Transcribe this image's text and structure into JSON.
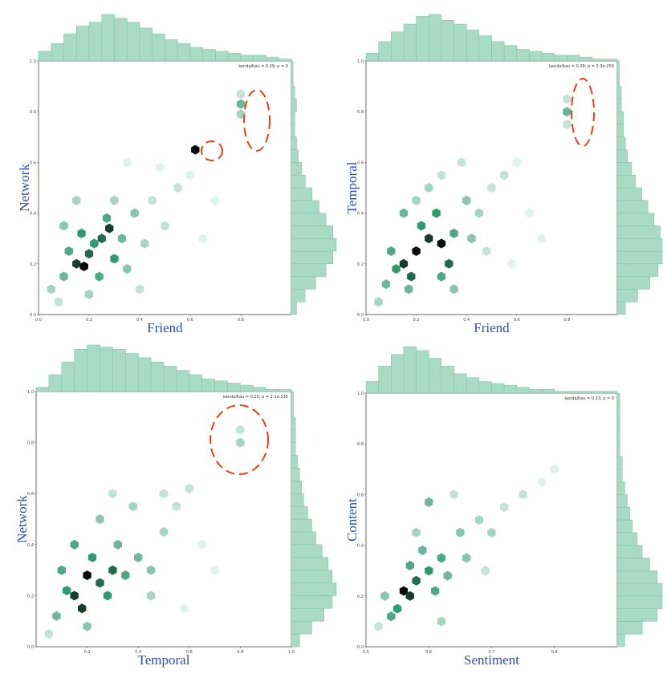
{
  "chart_data": [
    {
      "type": "hexbin",
      "x_label": "Friend",
      "y_label": "Network",
      "annotation": "kendalltau = 0.29; p = 0",
      "color": "#2f9b70",
      "hist_color": "#a9dac5",
      "xlim": [
        0,
        1.0
      ],
      "ylim": [
        0,
        1.0
      ],
      "xticks": [
        {
          "value": 0,
          "label": "0.0"
        },
        0.2,
        0.4,
        0.6,
        0.8
      ],
      "yticks": [
        {
          "value": 0,
          "label": "0.0"
        },
        0.2,
        0.4,
        0.6,
        0.8,
        {
          "value": 1,
          "label": "1.0"
        }
      ],
      "x": [
        0.15,
        0.18,
        0.2,
        0.25,
        0.28,
        0.3,
        0.22,
        0.12,
        0.17,
        0.27,
        0.33,
        0.1,
        0.24,
        0.35,
        0.38,
        0.3,
        0.1,
        0.05,
        0.2,
        0.42,
        0.45,
        0.5,
        0.15,
        0.55,
        0.6,
        0.48,
        0.62,
        0.8,
        0.8,
        0.8,
        0.7,
        0.65,
        0.35,
        0.08,
        0.4
      ],
      "y": [
        0.2,
        0.19,
        0.24,
        0.3,
        0.34,
        0.22,
        0.28,
        0.25,
        0.32,
        0.38,
        0.3,
        0.15,
        0.15,
        0.18,
        0.4,
        0.45,
        0.35,
        0.1,
        0.08,
        0.28,
        0.45,
        0.35,
        0.45,
        0.5,
        0.55,
        0.58,
        0.65,
        0.83,
        0.79,
        0.87,
        0.45,
        0.3,
        0.6,
        0.05,
        0.1
      ],
      "counts": [
        9,
        10,
        8,
        8,
        9,
        7,
        7,
        6,
        7,
        6,
        5,
        5,
        6,
        4,
        4,
        3,
        4,
        3,
        3,
        3,
        2,
        2,
        3,
        2,
        1,
        1,
        10,
        5,
        3,
        2,
        1,
        1,
        1,
        2,
        2
      ],
      "x_bins": [
        0,
        0.05,
        0.1,
        0.15,
        0.2,
        0.25,
        0.3,
        0.35,
        0.4,
        0.45,
        0.5,
        0.55,
        0.6,
        0.65,
        0.7,
        0.75,
        0.8,
        0.85,
        0.9,
        0.95,
        1.0
      ],
      "x_hist": [
        5,
        9,
        14,
        18,
        20,
        24,
        22,
        20,
        17,
        14,
        11,
        9,
        7,
        6,
        5,
        4,
        3,
        3,
        2,
        1
      ],
      "y_bins": [
        0,
        0.05,
        0.1,
        0.15,
        0.2,
        0.25,
        0.3,
        0.35,
        0.4,
        0.45,
        0.5,
        0.55,
        0.6,
        0.65,
        0.7,
        0.75,
        0.8,
        0.85,
        0.9,
        0.95,
        1.0
      ],
      "y_hist": [
        3,
        8,
        14,
        20,
        24,
        26,
        24,
        20,
        16,
        12,
        8,
        6,
        4,
        3,
        2,
        2,
        3,
        2,
        1,
        1
      ]
    },
    {
      "type": "hexbin",
      "x_label": "Friend",
      "y_label": "Temporal",
      "annotation": "kendalltau = 0.28; p = 2.3e-250",
      "color": "#2f9b70",
      "hist_color": "#a9dac5",
      "xlim": [
        0,
        1.0
      ],
      "ylim": [
        0,
        1.0
      ],
      "xticks": [
        {
          "value": 0,
          "label": "0.0"
        },
        0.2,
        0.4,
        0.6,
        0.8
      ],
      "yticks": [
        {
          "value": 0,
          "label": "0.0"
        },
        0.2,
        0.4,
        0.6,
        0.8,
        {
          "value": 1,
          "label": "1.0"
        }
      ],
      "x": [
        0.15,
        0.2,
        0.18,
        0.25,
        0.3,
        0.28,
        0.12,
        0.1,
        0.22,
        0.33,
        0.35,
        0.3,
        0.08,
        0.17,
        0.4,
        0.42,
        0.25,
        0.45,
        0.5,
        0.55,
        0.6,
        0.38,
        0.05,
        0.2,
        0.3,
        0.8,
        0.8,
        0.8,
        0.65,
        0.7,
        0.48,
        0.58,
        0.15,
        0.35
      ],
      "y": [
        0.2,
        0.25,
        0.15,
        0.3,
        0.28,
        0.4,
        0.18,
        0.25,
        0.35,
        0.2,
        0.32,
        0.15,
        0.12,
        0.1,
        0.45,
        0.3,
        0.5,
        0.4,
        0.5,
        0.55,
        0.6,
        0.6,
        0.05,
        0.45,
        0.55,
        0.8,
        0.85,
        0.75,
        0.4,
        0.3,
        0.25,
        0.2,
        0.4,
        0.1
      ],
      "counts": [
        9,
        10,
        8,
        9,
        10,
        7,
        7,
        6,
        7,
        8,
        6,
        6,
        5,
        5,
        4,
        4,
        3,
        3,
        2,
        2,
        1,
        2,
        3,
        3,
        2,
        5,
        2,
        2,
        1,
        1,
        2,
        1,
        5,
        4
      ],
      "x_bins": [
        0,
        0.05,
        0.1,
        0.15,
        0.2,
        0.25,
        0.3,
        0.35,
        0.4,
        0.45,
        0.5,
        0.55,
        0.6,
        0.65,
        0.7,
        0.75,
        0.8,
        0.85,
        0.9,
        0.95,
        1.0
      ],
      "x_hist": [
        4,
        10,
        15,
        19,
        23,
        24,
        21,
        19,
        16,
        13,
        10,
        8,
        6,
        5,
        4,
        3,
        3,
        2,
        1,
        1
      ],
      "y_bins": [
        0,
        0.05,
        0.1,
        0.15,
        0.2,
        0.25,
        0.3,
        0.35,
        0.4,
        0.45,
        0.5,
        0.55,
        0.6,
        0.65,
        0.7,
        0.75,
        0.8,
        0.85,
        0.9,
        0.95,
        1.0
      ],
      "y_hist": [
        4,
        10,
        16,
        20,
        22,
        22,
        21,
        18,
        15,
        12,
        9,
        7,
        5,
        4,
        3,
        3,
        2,
        2,
        1,
        1
      ]
    },
    {
      "type": "hexbin",
      "x_label": "Temporal",
      "y_label": "Network",
      "annotation": "kendalltau = 0.25; p = 2.1e-235",
      "color": "#2f9b70",
      "hist_color": "#a9dac5",
      "xlim": [
        0,
        1.0
      ],
      "ylim": [
        0,
        1.0
      ],
      "xticks": [
        0.2,
        0.4,
        0.6,
        0.8,
        {
          "value": 1,
          "label": "1.0"
        }
      ],
      "yticks": [
        {
          "value": 0,
          "label": "0.0"
        },
        0.2,
        0.4,
        0.6,
        0.8,
        {
          "value": 1,
          "label": "1.0"
        }
      ],
      "x": [
        0.15,
        0.2,
        0.18,
        0.25,
        0.3,
        0.22,
        0.12,
        0.1,
        0.28,
        0.35,
        0.4,
        0.32,
        0.08,
        0.15,
        0.45,
        0.5,
        0.55,
        0.6,
        0.25,
        0.38,
        0.45,
        0.2,
        0.65,
        0.7,
        0.8,
        0.8,
        0.58,
        0.3,
        0.5,
        0.05
      ],
      "y": [
        0.2,
        0.28,
        0.15,
        0.25,
        0.3,
        0.35,
        0.22,
        0.3,
        0.2,
        0.28,
        0.35,
        0.4,
        0.12,
        0.4,
        0.3,
        0.45,
        0.55,
        0.62,
        0.5,
        0.55,
        0.2,
        0.08,
        0.4,
        0.3,
        0.85,
        0.8,
        0.15,
        0.6,
        0.6,
        0.05
      ],
      "counts": [
        9,
        10,
        9,
        8,
        8,
        7,
        7,
        6,
        7,
        6,
        5,
        5,
        5,
        6,
        4,
        3,
        2,
        2,
        4,
        3,
        3,
        4,
        1,
        1,
        2,
        3,
        1,
        2,
        2,
        2
      ],
      "x_bins": [
        0,
        0.05,
        0.1,
        0.15,
        0.2,
        0.25,
        0.3,
        0.35,
        0.4,
        0.45,
        0.5,
        0.55,
        0.6,
        0.65,
        0.7,
        0.75,
        0.8,
        0.85,
        0.9,
        0.95,
        1.0
      ],
      "x_hist": [
        2,
        8,
        14,
        20,
        22,
        21,
        20,
        18,
        16,
        14,
        12,
        10,
        8,
        6,
        5,
        4,
        3,
        2,
        1,
        1
      ],
      "y_bins": [
        0,
        0.05,
        0.1,
        0.15,
        0.2,
        0.25,
        0.3,
        0.35,
        0.4,
        0.45,
        0.5,
        0.55,
        0.6,
        0.65,
        0.7,
        0.75,
        0.8,
        0.85,
        0.9,
        0.95,
        1.0
      ],
      "y_hist": [
        4,
        10,
        16,
        20,
        22,
        20,
        18,
        15,
        12,
        10,
        8,
        6,
        5,
        4,
        3,
        2,
        2,
        2,
        1,
        1
      ]
    },
    {
      "type": "hexbin",
      "x_label": "Sentiment",
      "y_label": "Content",
      "annotation": "kendalltau = 0.33; p = 0",
      "color": "#2f9b70",
      "hist_color": "#a9dac5",
      "xlim": [
        0.5,
        0.9
      ],
      "ylim": [
        0,
        1.0
      ],
      "xticks": [
        0.5,
        0.6,
        0.7,
        0.8
      ],
      "yticks": [
        {
          "value": 0,
          "label": "0.0"
        },
        0.2,
        0.4,
        0.6,
        0.8,
        {
          "value": 1,
          "label": "1.0"
        }
      ],
      "x": [
        0.56,
        0.57,
        0.58,
        0.6,
        0.62,
        0.55,
        0.54,
        0.59,
        0.61,
        0.63,
        0.65,
        0.6,
        0.57,
        0.66,
        0.68,
        0.7,
        0.72,
        0.64,
        0.53,
        0.75,
        0.78,
        0.8,
        0.69,
        0.62,
        0.58,
        0.52
      ],
      "y": [
        0.22,
        0.2,
        0.26,
        0.3,
        0.35,
        0.15,
        0.12,
        0.38,
        0.22,
        0.28,
        0.45,
        0.57,
        0.32,
        0.35,
        0.5,
        0.45,
        0.55,
        0.6,
        0.2,
        0.6,
        0.65,
        0.7,
        0.3,
        0.1,
        0.45,
        0.08
      ],
      "counts": [
        10,
        9,
        8,
        7,
        6,
        7,
        6,
        5,
        6,
        5,
        4,
        5,
        6,
        4,
        3,
        3,
        2,
        2,
        4,
        2,
        1,
        1,
        2,
        3,
        3,
        2
      ],
      "x_bins": [
        0.5,
        0.52,
        0.54,
        0.56,
        0.58,
        0.6,
        0.62,
        0.64,
        0.66,
        0.68,
        0.7,
        0.72,
        0.74,
        0.76,
        0.78,
        0.8,
        0.82,
        0.84,
        0.86,
        0.88,
        0.9
      ],
      "x_hist": [
        6,
        14,
        20,
        24,
        22,
        18,
        14,
        10,
        8,
        6,
        5,
        4,
        3,
        2,
        2,
        1,
        1,
        1,
        1,
        1
      ],
      "y_bins": [
        0,
        0.05,
        0.1,
        0.15,
        0.2,
        0.25,
        0.3,
        0.35,
        0.4,
        0.45,
        0.5,
        0.55,
        0.6,
        0.65,
        0.7,
        0.75,
        0.8,
        0.85,
        0.9,
        0.95,
        1.0
      ],
      "y_hist": [
        3,
        10,
        16,
        18,
        18,
        16,
        13,
        10,
        8,
        6,
        5,
        4,
        3,
        2,
        2,
        1,
        1,
        1,
        1,
        1
      ]
    }
  ]
}
